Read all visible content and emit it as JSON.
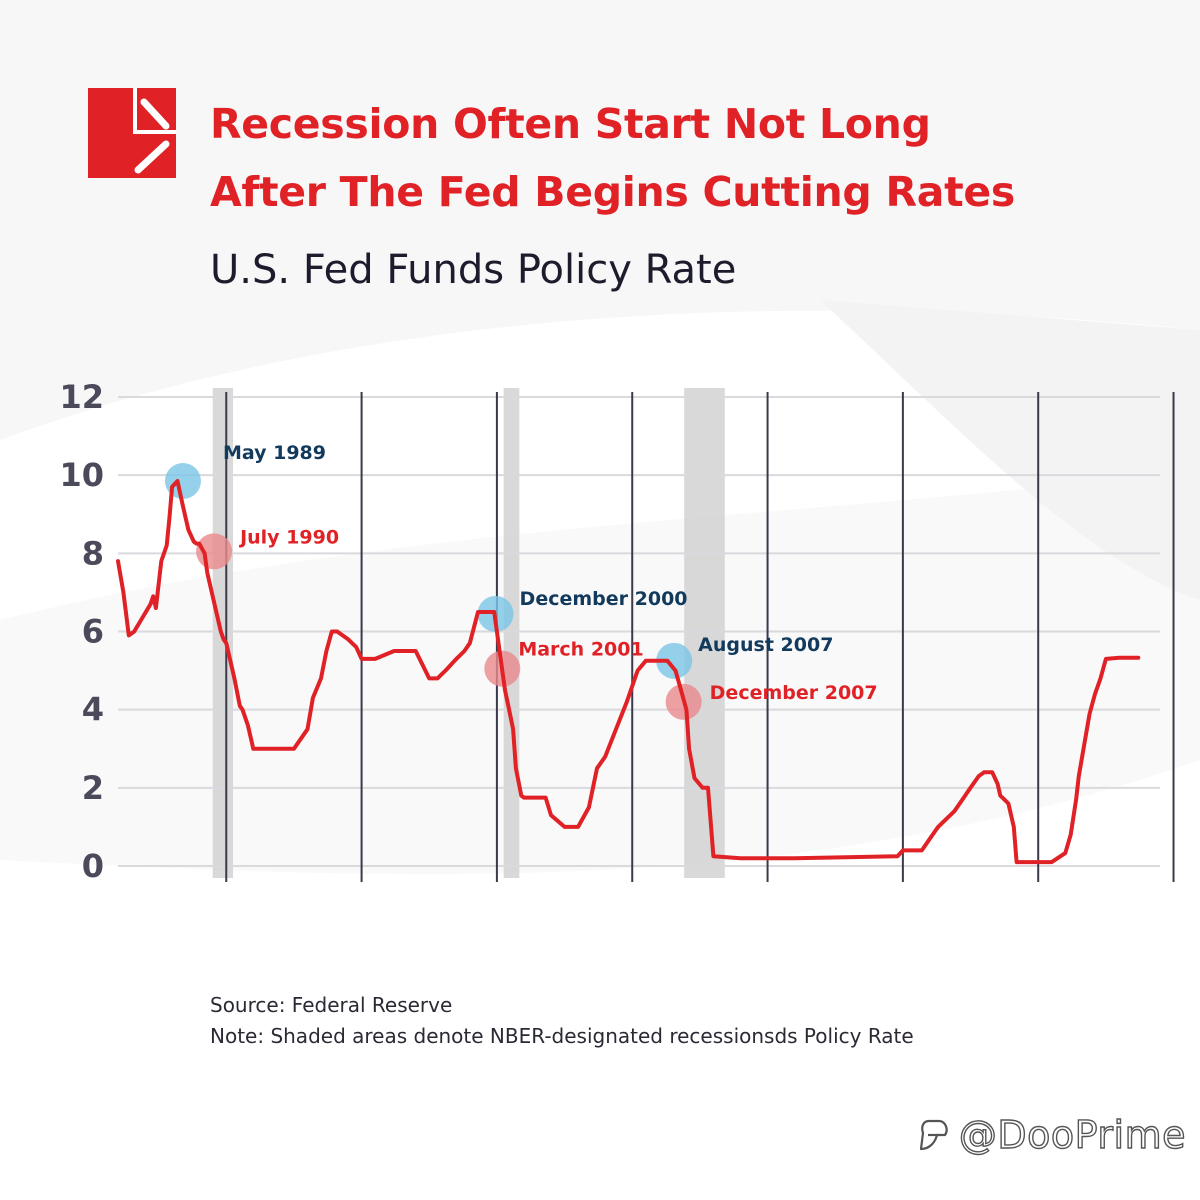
{
  "header": {
    "title_line1": "Recession Often Start Not Long",
    "title_line2": "After The Fed Begins Cutting Rates",
    "subtitle": "U.S. Fed Funds Policy Rate"
  },
  "colors": {
    "brand_red": "#e02126",
    "navy": "#123a5c",
    "marker_blue": "#7cc6e6",
    "marker_red": "#ea8a8c",
    "recession_shade": "#d2d2d2"
  },
  "footer": {
    "source": "Source: Federal Reserve",
    "note": "Note: Shaded areas denote NBER-designated recessionsds Policy Rate",
    "watermark": "@DooPrime",
    "watermark_icon": "dooprime-logo-icon"
  },
  "chart_data": {
    "type": "line",
    "title": "",
    "xlabel": "",
    "ylabel": "",
    "x_tick_labels": [],
    "ylim": [
      0,
      12
    ],
    "xlim": [
      1987.0,
      2025.5
    ],
    "y_ticks": [
      0,
      2,
      4,
      6,
      8,
      10,
      12
    ],
    "grid": true,
    "vertical_gridlines_at": [
      1991,
      1996,
      2001,
      2006,
      2011,
      2016,
      2021,
      2026
    ],
    "recessions": [
      {
        "start": 1990.5,
        "end": 1991.25
      },
      {
        "start": 2001.25,
        "end": 2001.83
      },
      {
        "start": 2007.92,
        "end": 2009.42
      }
    ],
    "series": [
      {
        "color": "#e02126",
        "x": [
          1987.0,
          1987.2,
          1987.4,
          1987.6,
          1988.2,
          1988.3,
          1988.4,
          1988.6,
          1988.8,
          1988.9,
          1989.0,
          1989.2,
          1989.4,
          1989.5,
          1989.6,
          1989.8,
          1989.9,
          1990.0,
          1990.2,
          1990.3,
          1990.5,
          1990.6,
          1990.8,
          1990.9,
          1991.0,
          1991.3,
          1991.5,
          1991.6,
          1991.8,
          1992.0,
          1992.3,
          1992.6,
          1992.9,
          1993.5,
          1994.0,
          1994.2,
          1994.5,
          1994.7,
          1994.9,
          1995.1,
          1995.5,
          1995.8,
          1996.0,
          1996.5,
          1997.2,
          1998.0,
          1998.5,
          1998.8,
          1999.1,
          1999.5,
          1999.8,
          2000.0,
          2000.3,
          2000.5,
          2000.9,
          2001.0,
          2001.1,
          2001.2,
          2001.3,
          2001.45,
          2001.6,
          2001.7,
          2001.9,
          2002.0,
          2002.8,
          2003.0,
          2003.5,
          2004.0,
          2004.4,
          2004.7,
          2005.0,
          2005.4,
          2005.8,
          2006.2,
          2006.5,
          2007.1,
          2007.3,
          2007.6,
          2007.8,
          2007.9,
          2008.0,
          2008.1,
          2008.3,
          2008.6,
          2008.8,
          2009.0,
          2010.0,
          2012.0,
          2015.8,
          2016.0,
          2016.7,
          2017.0,
          2017.3,
          2017.6,
          2017.9,
          2018.2,
          2018.5,
          2018.8,
          2019.0,
          2019.3,
          2019.5,
          2019.6,
          2019.9,
          2020.1,
          2020.2,
          2021.5,
          2022.0,
          2022.2,
          2022.4,
          2022.5,
          2022.7,
          2022.9,
          2023.1,
          2023.3,
          2023.5,
          2024.0,
          2024.7
        ],
        "values": [
          7.8,
          7.0,
          5.9,
          6.0,
          6.7,
          6.9,
          6.6,
          7.8,
          8.2,
          8.9,
          9.7,
          9.85,
          9.2,
          8.9,
          8.6,
          8.3,
          8.25,
          8.25,
          8.0,
          7.5,
          6.9,
          6.6,
          6.0,
          5.8,
          5.7,
          4.8,
          4.1,
          4.0,
          3.6,
          3.0,
          3.0,
          3.0,
          3.0,
          3.0,
          3.5,
          4.3,
          4.8,
          5.5,
          6.0,
          6.0,
          5.8,
          5.6,
          5.3,
          5.3,
          5.5,
          5.5,
          4.8,
          4.8,
          5.0,
          5.3,
          5.5,
          5.7,
          6.5,
          6.5,
          6.5,
          6.0,
          5.5,
          5.0,
          4.5,
          4.0,
          3.5,
          2.5,
          1.8,
          1.75,
          1.75,
          1.3,
          1.0,
          1.0,
          1.5,
          2.5,
          2.8,
          3.5,
          4.2,
          5.0,
          5.25,
          5.25,
          5.25,
          5.0,
          4.5,
          4.25,
          4.0,
          3.0,
          2.25,
          2.0,
          2.0,
          0.25,
          0.2,
          0.2,
          0.25,
          0.4,
          0.4,
          0.7,
          1.0,
          1.2,
          1.4,
          1.7,
          2.0,
          2.3,
          2.4,
          2.4,
          2.1,
          1.8,
          1.6,
          1.0,
          0.1,
          0.1,
          0.33,
          0.8,
          1.7,
          2.3,
          3.1,
          3.9,
          4.4,
          4.8,
          5.3,
          5.33,
          5.33
        ]
      }
    ],
    "annotations": [
      {
        "label": "May 1989",
        "x": 1989.4,
        "y": 9.85,
        "tone": "blue"
      },
      {
        "label": "July 1990",
        "x": 1990.55,
        "y": 8.05,
        "tone": "red"
      },
      {
        "label": "December 2000",
        "x": 2000.95,
        "y": 6.45,
        "tone": "blue"
      },
      {
        "label": "March 2001",
        "x": 2001.2,
        "y": 5.05,
        "tone": "red"
      },
      {
        "label": "August 2007",
        "x": 2007.55,
        "y": 5.25,
        "tone": "blue"
      },
      {
        "label": "December 2007",
        "x": 2007.9,
        "y": 4.2,
        "tone": "red"
      }
    ]
  }
}
